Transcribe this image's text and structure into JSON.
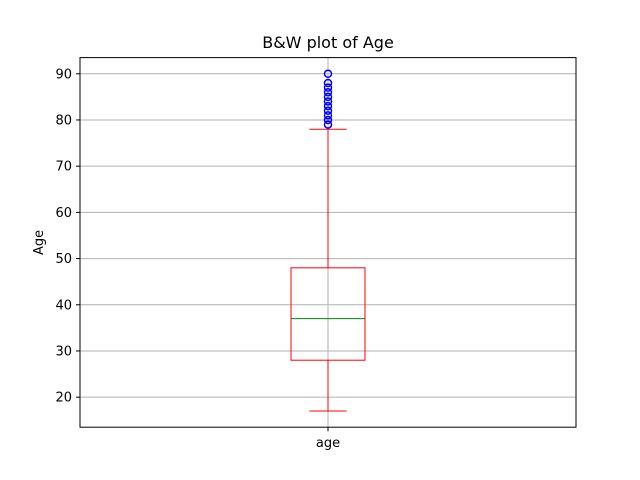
{
  "chart_data": {
    "type": "box",
    "title": "B&W plot of Age",
    "xlabel": "",
    "ylabel": "Age",
    "categories": [
      "age"
    ],
    "ylim": [
      13.5,
      93.5
    ],
    "yticks": [
      20,
      30,
      40,
      50,
      60,
      70,
      80,
      90
    ],
    "grid": true,
    "boxes": [
      {
        "name": "age",
        "whisker_low": 17,
        "q1": 28,
        "median": 37,
        "q3": 48,
        "whisker_high": 78,
        "outliers": [
          79,
          80,
          81,
          82,
          83,
          84,
          85,
          86,
          87,
          88,
          90
        ]
      }
    ],
    "colors": {
      "box": "#ff0000",
      "median": "#008000",
      "flier": "#0000ff",
      "grid": "#b0b0b0"
    }
  }
}
